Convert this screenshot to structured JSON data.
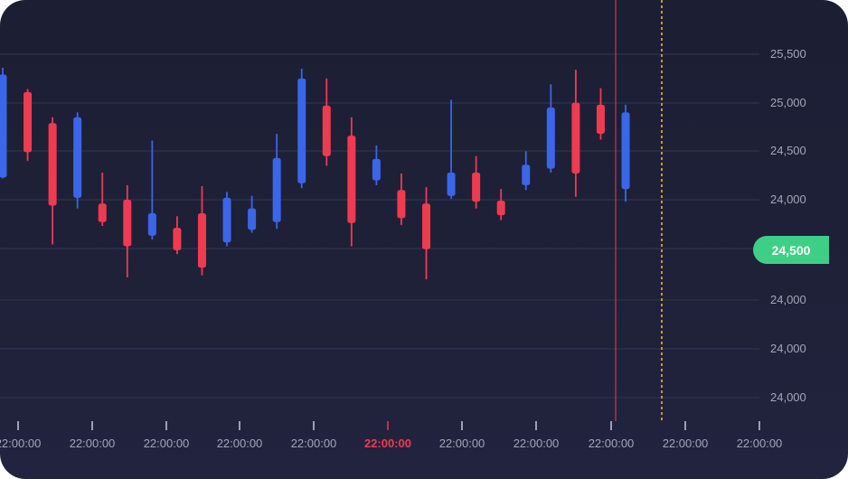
{
  "chart_data": {
    "type": "candlestick",
    "y_tick_labels": [
      "25,500",
      "25,000",
      "24,500",
      "24,000",
      "24,000",
      "24,000",
      "24,000",
      "24,000"
    ],
    "x_tick_labels": [
      "22:00:00",
      "22:00:00",
      "22:00:00",
      "22:00:00",
      "22:00:00",
      "22:00:00",
      "22:00:00",
      "22:00:00",
      "22:00:00",
      "22:00:00",
      "22:00:00"
    ],
    "highlighted_x_tick_index": 5,
    "current_price_label": "24,500",
    "colors": {
      "up": "#3a66e8",
      "down": "#ef3b50",
      "price_badge": "#3ecf86",
      "now_line": "#ef3b50",
      "future_line": "#f5c518",
      "grid": "#34374f"
    },
    "candles": [
      {
        "dir": "up",
        "open": 24230,
        "close": 25290,
        "high": 25360,
        "low": 24220
      },
      {
        "dir": "down",
        "open": 25110,
        "close": 24490,
        "high": 25140,
        "low": 24400
      },
      {
        "dir": "down",
        "open": 24790,
        "close": 23940,
        "high": 24850,
        "low": 23540
      },
      {
        "dir": "up",
        "open": 24020,
        "close": 24850,
        "high": 24900,
        "low": 23910
      },
      {
        "dir": "down",
        "open": 23960,
        "close": 23770,
        "high": 24280,
        "low": 23730
      },
      {
        "dir": "down",
        "open": 24000,
        "close": 23520,
        "high": 24150,
        "low": 23200
      },
      {
        "dir": "up",
        "open": 23630,
        "close": 23860,
        "high": 24610,
        "low": 23590
      },
      {
        "dir": "down",
        "open": 23710,
        "close": 23480,
        "high": 23830,
        "low": 23440
      },
      {
        "dir": "down",
        "open": 23860,
        "close": 23300,
        "high": 24140,
        "low": 23220
      },
      {
        "dir": "up",
        "open": 23560,
        "close": 24020,
        "high": 24080,
        "low": 23520
      },
      {
        "dir": "up",
        "open": 23690,
        "close": 23910,
        "high": 24040,
        "low": 23660
      },
      {
        "dir": "up",
        "open": 23770,
        "close": 24430,
        "high": 24680,
        "low": 23700
      },
      {
        "dir": "up",
        "open": 24170,
        "close": 25250,
        "high": 25350,
        "low": 24120
      },
      {
        "dir": "down",
        "open": 24970,
        "close": 24450,
        "high": 25250,
        "low": 24350
      },
      {
        "dir": "down",
        "open": 24660,
        "close": 23760,
        "high": 24850,
        "low": 23520
      },
      {
        "dir": "up",
        "open": 24200,
        "close": 24420,
        "high": 24560,
        "low": 24150
      },
      {
        "dir": "down",
        "open": 24100,
        "close": 23810,
        "high": 24270,
        "low": 23740
      },
      {
        "dir": "down",
        "open": 23960,
        "close": 23490,
        "high": 24130,
        "low": 23180
      },
      {
        "dir": "up",
        "open": 24040,
        "close": 24280,
        "high": 25030,
        "low": 24010
      },
      {
        "dir": "down",
        "open": 24280,
        "close": 23980,
        "high": 24450,
        "low": 23910
      },
      {
        "dir": "down",
        "open": 23990,
        "close": 23840,
        "high": 24110,
        "low": 23790
      },
      {
        "dir": "up",
        "open": 24150,
        "close": 24360,
        "high": 24500,
        "low": 24100
      },
      {
        "dir": "up",
        "open": 24320,
        "close": 24950,
        "high": 25190,
        "low": 24280
      },
      {
        "dir": "down",
        "open": 25000,
        "close": 24270,
        "high": 25340,
        "low": 24030
      },
      {
        "dir": "down",
        "open": 24980,
        "close": 24680,
        "high": 25150,
        "low": 24620
      },
      {
        "dir": "up",
        "open": 24110,
        "close": 24900,
        "high": 24980,
        "low": 23980
      }
    ]
  }
}
